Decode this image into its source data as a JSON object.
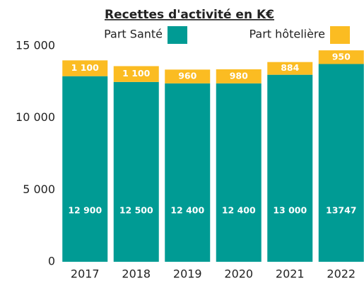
{
  "chart_data": {
    "type": "stacked_bar",
    "title": "Recettes d'activité en K€",
    "categories": [
      "2017",
      "2018",
      "2019",
      "2020",
      "2021",
      "2022"
    ],
    "series": [
      {
        "name": "Part Santé",
        "color": "#009b94",
        "values": [
          12900,
          12500,
          12400,
          12400,
          13000,
          13747
        ],
        "value_labels": [
          "12 900",
          "12 500",
          "12 400",
          "12 400",
          "13 000",
          "13747"
        ]
      },
      {
        "name": "Part hôtelière",
        "color": "#fbbc22",
        "values": [
          1100,
          1100,
          960,
          980,
          884,
          950
        ],
        "value_labels": [
          "1 100",
          "1 100",
          "960",
          "980",
          "884",
          "950"
        ]
      }
    ],
    "ylim": [
      0,
      15000
    ],
    "yticks": [
      0,
      {
        "value": 5000,
        "label": "5 000"
      },
      {
        "value": 10000,
        "label": "10 000"
      },
      {
        "value": 15000,
        "label": "15 000"
      }
    ],
    "legend": "top",
    "grid": false
  }
}
